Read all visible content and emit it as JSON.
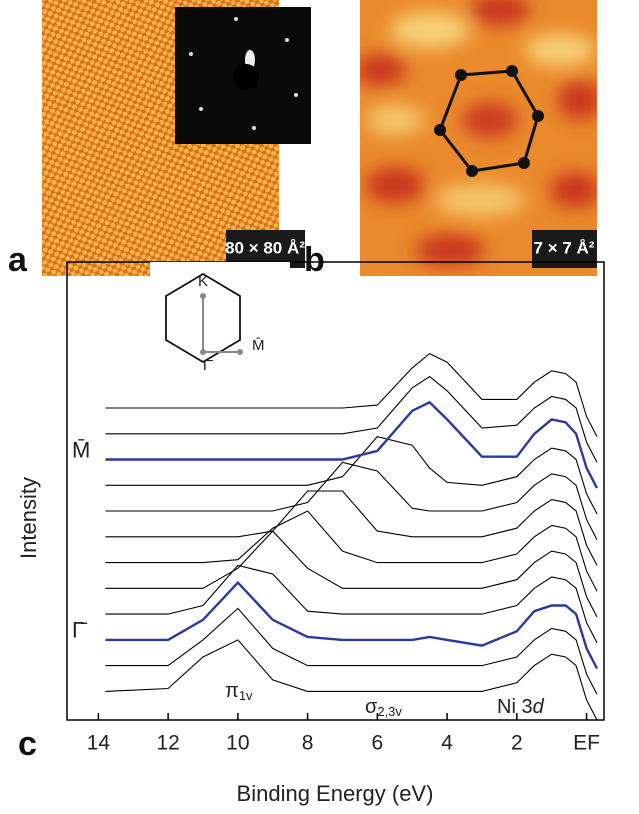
{
  "panels": [
    {
      "label": "a",
      "scale": "80 × 80 Å²"
    },
    {
      "label": "b",
      "scale": "7 × 7 Å²"
    }
  ],
  "chart_data": {
    "type": "line",
    "panel_label": "c",
    "x_label": "Binding Energy (eV)",
    "y_label": "Intensity",
    "xlim": [
      14.9,
      -0.5
    ],
    "ylim": [
      0,
      16
    ],
    "xticks": [
      14,
      12,
      10,
      8,
      6,
      4,
      2,
      {
        "value": 0,
        "label": "EF"
      }
    ],
    "bz_labels": [
      "K̄",
      "Γ̄",
      "M̄"
    ],
    "annotations": [
      {
        "text": "π",
        "sub": "1v"
      },
      {
        "text": "σ",
        "sub": "2,3v"
      },
      {
        "text": "Ni 3",
        "em": "d"
      }
    ],
    "x": [
      13.8,
      12,
      11,
      10,
      9,
      8,
      7,
      6,
      5,
      4.5,
      4,
      3,
      2,
      1.5,
      1,
      0.6,
      0.3,
      0,
      -0.3
    ],
    "series": [
      {
        "color": "#000000",
        "values": [
          1,
          1.1,
          2.2,
          2.8,
          1.4,
          1,
          1,
          1,
          1,
          1,
          1,
          1,
          1.3,
          1.9,
          2.3,
          2.2,
          1.9,
          0.7,
          0
        ]
      },
      {
        "color": "#000000",
        "values": [
          1,
          1,
          1.9,
          3,
          1.6,
          1,
          1,
          1,
          1,
          1,
          1,
          1,
          1.3,
          1.9,
          2.3,
          2.2,
          1.9,
          0.7,
          0
        ]
      },
      {
        "name": "Γ̄",
        "color": "#2b3a9e",
        "values": [
          1,
          1,
          1.7,
          3,
          1.7,
          1.1,
          1,
          1,
          1,
          1.1,
          1,
          0.8,
          1.3,
          2,
          2.2,
          2.2,
          1.9,
          0.7,
          0
        ]
      },
      {
        "color": "#000000",
        "values": [
          1,
          1,
          1.3,
          2.7,
          2.4,
          1.1,
          1,
          1,
          1,
          1,
          1,
          1,
          1.3,
          1.9,
          2.3,
          2.2,
          1.9,
          0.7,
          0
        ]
      },
      {
        "color": "#000000",
        "values": [
          1,
          1,
          1,
          1.7,
          3,
          1.7,
          1,
          1,
          1,
          1,
          1,
          1,
          1.3,
          1.9,
          2.3,
          2.2,
          1.9,
          0.7,
          0
        ]
      },
      {
        "color": "#000000",
        "values": [
          1,
          1,
          1,
          1.1,
          2.2,
          2.8,
          1.4,
          1,
          1,
          1,
          1,
          1,
          1.3,
          1.9,
          2.3,
          2.2,
          1.9,
          0.7,
          0
        ]
      },
      {
        "color": "#000000",
        "values": [
          1,
          1,
          1,
          1,
          1.2,
          2.6,
          2.6,
          1.2,
          1,
          1,
          1,
          1,
          1.3,
          1.9,
          2.3,
          2.2,
          1.9,
          0.7,
          0
        ]
      },
      {
        "color": "#000000",
        "values": [
          1,
          1,
          1,
          1,
          1,
          1.3,
          2.7,
          2.4,
          1.1,
          1,
          1,
          1,
          1.3,
          1.9,
          2.3,
          2.2,
          1.9,
          0.7,
          0
        ]
      },
      {
        "color": "#000000",
        "values": [
          1,
          1,
          1,
          1,
          1,
          1,
          1.3,
          2.7,
          2.4,
          1.6,
          1.1,
          1,
          1.3,
          1.9,
          2.3,
          2.2,
          1.9,
          0.7,
          0
        ]
      },
      {
        "name": "M̄",
        "color": "#2b3a9e",
        "values": [
          1,
          1,
          1,
          1,
          1,
          1,
          1,
          1.3,
          2.7,
          3,
          2.4,
          1.1,
          1.1,
          1.9,
          2.4,
          2.3,
          1.9,
          0.7,
          0
        ]
      },
      {
        "color": "#000000",
        "values": [
          1,
          1,
          1,
          1,
          1,
          1,
          1,
          1.2,
          2.6,
          3,
          2.5,
          1.2,
          1.3,
          1.9,
          2.3,
          2.2,
          1.9,
          0.7,
          0
        ]
      },
      {
        "color": "#000000",
        "values": [
          1,
          1,
          1,
          1,
          1,
          1,
          1,
          1.1,
          2.4,
          2.9,
          2.6,
          1.3,
          1.3,
          1.9,
          2.3,
          2.2,
          1.9,
          0.7,
          0
        ]
      }
    ]
  }
}
